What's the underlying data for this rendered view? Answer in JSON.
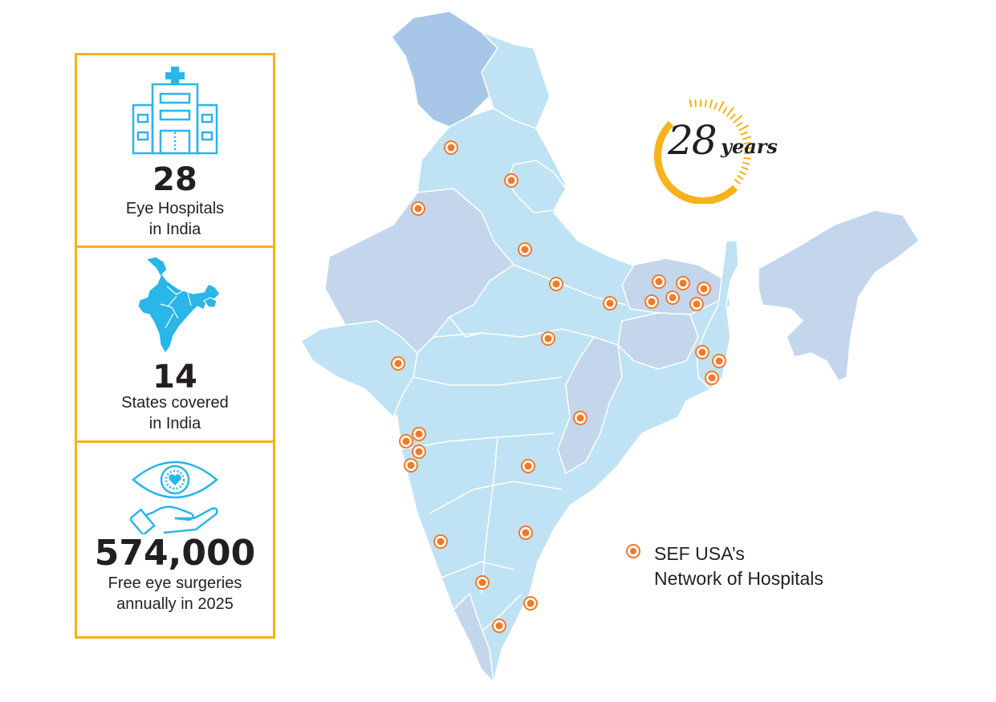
{
  "stats": [
    {
      "icon": "hospital-icon",
      "value": "28",
      "caption_line1": "Eye Hospitals",
      "caption_line2": "in India"
    },
    {
      "icon": "india-map-icon",
      "value": "14",
      "caption_line1": "States covered",
      "caption_line2": "in India"
    },
    {
      "icon": "eye-in-hand-icon",
      "value": "574,000",
      "caption_line1": "Free eye surgeries",
      "caption_line2": "annually in 2025"
    }
  ],
  "badge": {
    "number": "28",
    "word": "years"
  },
  "legend": {
    "line1": "SEF USA’s",
    "line2": "Network of Hospitals",
    "marker_color": "#f07a2a"
  },
  "colors": {
    "accent_border": "#f5b21a",
    "icon_blue": "#29b6e8",
    "map_light": "#bfe3f4",
    "map_mid": "#c4d6ec",
    "map_dark": "#a8c6e8",
    "marker": "#f07a2a"
  }
}
